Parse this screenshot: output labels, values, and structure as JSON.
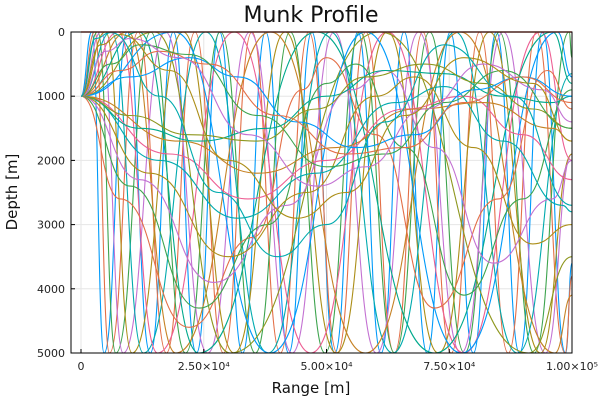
{
  "chart_data": {
    "type": "line",
    "title": "Munk Profile",
    "xlabel": "Range [m]",
    "ylabel": "Depth [m]",
    "xlim": [
      0,
      100000
    ],
    "ylim": [
      0,
      5000
    ],
    "y_inverted": true,
    "grid": true,
    "legend": "none",
    "x_ticks": [
      {
        "value": 0,
        "label": "0"
      },
      {
        "value": 25000,
        "label": "2.50×10⁴"
      },
      {
        "value": 50000,
        "label": "5.00×10⁴"
      },
      {
        "value": 75000,
        "label": "7.50×10⁴"
      },
      {
        "value": 100000,
        "label": "1.00×10⁵"
      }
    ],
    "y_ticks": [
      {
        "value": 0,
        "label": "0"
      },
      {
        "value": 1000,
        "label": "1000"
      },
      {
        "value": 2000,
        "label": "2000"
      },
      {
        "value": 3000,
        "label": "3000"
      },
      {
        "value": 4000,
        "label": "4000"
      },
      {
        "value": 5000,
        "label": "5000"
      }
    ],
    "source": {
      "x": 0,
      "depth": 1000
    },
    "surface_line": {
      "y": 0,
      "color": "#e26d5c"
    },
    "palette": [
      "#009AFA",
      "#E36F47",
      "#3EA44E",
      "#C371D2",
      "#AC8E18",
      "#00AAAE",
      "#ED5E93",
      "#C68225",
      "#00A98D",
      "#8E971E"
    ],
    "series": [
      {
        "points": [
          [
            0,
            1000
          ],
          [
            2200,
            0
          ],
          [
            4700,
            5000
          ],
          [
            9400,
            0
          ],
          [
            14100,
            5000
          ],
          [
            18800,
            0
          ],
          [
            23500,
            5000
          ],
          [
            28200,
            0
          ],
          [
            32900,
            5000
          ],
          [
            37600,
            0
          ],
          [
            42300,
            5000
          ],
          [
            47000,
            0
          ],
          [
            51700,
            5000
          ],
          [
            56400,
            0
          ],
          [
            61100,
            5000
          ],
          [
            65800,
            0
          ],
          [
            70500,
            5000
          ],
          [
            75200,
            0
          ],
          [
            79900,
            5000
          ],
          [
            84600,
            0
          ],
          [
            89300,
            5000
          ],
          [
            94000,
            0
          ],
          [
            98700,
            5000
          ],
          [
            100000,
            3600
          ]
        ]
      },
      {
        "points": [
          [
            0,
            1000
          ],
          [
            2800,
            0
          ],
          [
            5800,
            5000
          ],
          [
            11600,
            0
          ],
          [
            17400,
            5000
          ],
          [
            23200,
            0
          ],
          [
            29000,
            5000
          ],
          [
            34800,
            0
          ],
          [
            40600,
            5000
          ],
          [
            46400,
            0
          ],
          [
            52200,
            5000
          ],
          [
            58000,
            0
          ],
          [
            63800,
            5000
          ],
          [
            69600,
            0
          ],
          [
            75400,
            5000
          ],
          [
            81200,
            0
          ],
          [
            87000,
            5000
          ],
          [
            92800,
            0
          ],
          [
            98600,
            5000
          ],
          [
            100000,
            3800
          ]
        ]
      },
      {
        "points": [
          [
            0,
            1000
          ],
          [
            3400,
            0
          ],
          [
            7100,
            5000
          ],
          [
            14200,
            0
          ],
          [
            21300,
            5000
          ],
          [
            28400,
            0
          ],
          [
            35500,
            5000
          ],
          [
            42600,
            0
          ],
          [
            49700,
            5000
          ],
          [
            56800,
            0
          ],
          [
            63900,
            5000
          ],
          [
            71000,
            0
          ],
          [
            78100,
            5000
          ],
          [
            85200,
            0
          ],
          [
            92300,
            5000
          ],
          [
            99400,
            0
          ],
          [
            100000,
            400
          ]
        ]
      },
      {
        "points": [
          [
            0,
            1000
          ],
          [
            4100,
            0
          ],
          [
            8600,
            5000
          ],
          [
            17200,
            0
          ],
          [
            25800,
            5000
          ],
          [
            34400,
            0
          ],
          [
            43000,
            5000
          ],
          [
            51600,
            0
          ],
          [
            60200,
            5000
          ],
          [
            68800,
            0
          ],
          [
            77400,
            5000
          ],
          [
            86000,
            0
          ],
          [
            94600,
            5000
          ],
          [
            100000,
            1900
          ]
        ]
      },
      {
        "points": [
          [
            0,
            1000
          ],
          [
            5000,
            0
          ],
          [
            10400,
            5000
          ],
          [
            20800,
            0
          ],
          [
            31200,
            5000
          ],
          [
            41600,
            0
          ],
          [
            52000,
            5000
          ],
          [
            62400,
            0
          ],
          [
            72800,
            5000
          ],
          [
            83200,
            0
          ],
          [
            93600,
            5000
          ],
          [
            100000,
            1900
          ]
        ]
      },
      {
        "points": [
          [
            0,
            1000
          ],
          [
            6200,
            0
          ],
          [
            12700,
            5000
          ],
          [
            25400,
            0
          ],
          [
            38100,
            5000
          ],
          [
            50800,
            0
          ],
          [
            63500,
            5000
          ],
          [
            76200,
            0
          ],
          [
            88900,
            5000
          ],
          [
            100000,
            650
          ]
        ]
      },
      {
        "points": [
          [
            0,
            1000
          ],
          [
            7600,
            0
          ],
          [
            15600,
            5000
          ],
          [
            31200,
            0
          ],
          [
            46800,
            5000
          ],
          [
            62400,
            0
          ],
          [
            78000,
            5000
          ],
          [
            93600,
            0
          ],
          [
            100000,
            2000
          ]
        ]
      },
      {
        "points": [
          [
            0,
            1000
          ],
          [
            9500,
            0
          ],
          [
            19300,
            5000
          ],
          [
            38600,
            0
          ],
          [
            57900,
            5000
          ],
          [
            77200,
            0
          ],
          [
            96500,
            5000
          ],
          [
            100000,
            4100
          ]
        ]
      },
      {
        "points": [
          [
            0,
            1000
          ],
          [
            11800,
            0
          ],
          [
            24000,
            5000
          ],
          [
            48000,
            0
          ],
          [
            72000,
            5000
          ],
          [
            96000,
            0
          ],
          [
            100000,
            800
          ]
        ]
      },
      {
        "points": [
          [
            0,
            1000
          ],
          [
            15000,
            0
          ],
          [
            30400,
            5000
          ],
          [
            60800,
            0
          ],
          [
            91200,
            5000
          ],
          [
            100000,
            3500
          ]
        ]
      },
      {
        "points": [
          [
            0,
            1000
          ],
          [
            19000,
            0
          ],
          [
            38500,
            5000
          ],
          [
            58000,
            0
          ],
          [
            77500,
            5000
          ],
          [
            97000,
            0
          ],
          [
            100000,
            700
          ]
        ]
      },
      {
        "points": [
          [
            0,
            1000
          ],
          [
            8000,
            2600
          ],
          [
            22000,
            4600
          ],
          [
            35000,
            3200
          ],
          [
            45000,
            900
          ],
          [
            50000,
            400
          ],
          [
            60000,
            1600
          ],
          [
            72000,
            4300
          ],
          [
            85000,
            2600
          ],
          [
            95000,
            600
          ],
          [
            100000,
            1200
          ]
        ]
      },
      {
        "points": [
          [
            0,
            1000
          ],
          [
            10000,
            2400
          ],
          [
            24000,
            4300
          ],
          [
            38000,
            3000
          ],
          [
            50000,
            800
          ],
          [
            56000,
            500
          ],
          [
            66000,
            1800
          ],
          [
            78000,
            4100
          ],
          [
            90000,
            2600
          ],
          [
            100000,
            900
          ]
        ]
      },
      {
        "points": [
          [
            0,
            1000
          ],
          [
            12000,
            2300
          ],
          [
            27000,
            3900
          ],
          [
            42000,
            2700
          ],
          [
            55000,
            900
          ],
          [
            62000,
            600
          ],
          [
            72000,
            1800
          ],
          [
            84000,
            3600
          ],
          [
            96000,
            2600
          ],
          [
            100000,
            2000
          ]
        ]
      },
      {
        "points": [
          [
            0,
            1000
          ],
          [
            14000,
            2200
          ],
          [
            30000,
            3500
          ],
          [
            46000,
            2500
          ],
          [
            60000,
            1000
          ],
          [
            68000,
            700
          ],
          [
            80000,
            1800
          ],
          [
            92000,
            3300
          ],
          [
            100000,
            3000
          ]
        ]
      },
      {
        "points": [
          [
            0,
            1000
          ],
          [
            16000,
            2000
          ],
          [
            32000,
            2900
          ],
          [
            48000,
            2200
          ],
          [
            64000,
            1100
          ],
          [
            74000,
            850
          ],
          [
            86000,
            1700
          ],
          [
            98000,
            2700
          ],
          [
            100000,
            2800
          ]
        ]
      },
      {
        "points": [
          [
            0,
            1000
          ],
          [
            18000,
            1900
          ],
          [
            34000,
            2600
          ],
          [
            50000,
            2000
          ],
          [
            66000,
            1200
          ],
          [
            78000,
            1000
          ],
          [
            90000,
            1600
          ],
          [
            100000,
            2300
          ]
        ]
      },
      {
        "points": [
          [
            0,
            1000
          ],
          [
            20000,
            1700
          ],
          [
            36000,
            2200
          ],
          [
            52000,
            1800
          ],
          [
            68000,
            1200
          ],
          [
            82000,
            1100
          ],
          [
            96000,
            1500
          ],
          [
            100000,
            1700
          ]
        ]
      },
      {
        "points": [
          [
            0,
            1000
          ],
          [
            12000,
            1500
          ],
          [
            24000,
            1700
          ],
          [
            38000,
            1500
          ],
          [
            50000,
            1000
          ],
          [
            62000,
            600
          ],
          [
            74000,
            650
          ],
          [
            86000,
            1000
          ],
          [
            96000,
            1100
          ],
          [
            100000,
            1000
          ]
        ]
      },
      {
        "points": [
          [
            0,
            1000
          ],
          [
            10000,
            1300
          ],
          [
            22000,
            1600
          ],
          [
            36000,
            1700
          ],
          [
            48000,
            1200
          ],
          [
            58000,
            700
          ],
          [
            70000,
            500
          ],
          [
            82000,
            800
          ],
          [
            92000,
            1200
          ],
          [
            100000,
            1500
          ]
        ]
      },
      {
        "points": [
          [
            0,
            1000
          ],
          [
            10000,
            700
          ],
          [
            22000,
            400
          ],
          [
            32000,
            700
          ],
          [
            44000,
            1400
          ],
          [
            56000,
            1800
          ],
          [
            68000,
            1600
          ],
          [
            80000,
            900
          ],
          [
            90000,
            700
          ],
          [
            100000,
            1000
          ]
        ]
      },
      {
        "points": [
          [
            0,
            1000
          ],
          [
            8000,
            600
          ],
          [
            16000,
            300
          ],
          [
            26000,
            500
          ],
          [
            40000,
            1300
          ],
          [
            54000,
            1900
          ],
          [
            66000,
            1800
          ],
          [
            78000,
            1100
          ],
          [
            90000,
            700
          ],
          [
            100000,
            1100
          ]
        ]
      },
      {
        "points": [
          [
            0,
            1000
          ],
          [
            6000,
            500
          ],
          [
            12000,
            200
          ],
          [
            22000,
            350
          ],
          [
            36000,
            1300
          ],
          [
            50000,
            2100
          ],
          [
            62000,
            1900
          ],
          [
            74000,
            1100
          ],
          [
            86000,
            600
          ],
          [
            100000,
            1500
          ]
        ]
      },
      {
        "points": [
          [
            0,
            1000
          ],
          [
            5000,
            300
          ],
          [
            10000,
            100
          ],
          [
            20000,
            400
          ],
          [
            34000,
            1600
          ],
          [
            48000,
            2400
          ],
          [
            58000,
            2100
          ],
          [
            70000,
            1200
          ],
          [
            82000,
            500
          ],
          [
            94000,
            900
          ],
          [
            100000,
            1400
          ]
        ]
      },
      {
        "points": [
          [
            0,
            1000
          ],
          [
            4000,
            200
          ],
          [
            8000,
            40
          ],
          [
            18000,
            600
          ],
          [
            30000,
            2000
          ],
          [
            44000,
            2900
          ],
          [
            54000,
            2500
          ],
          [
            66000,
            1300
          ],
          [
            78000,
            400
          ],
          [
            92000,
            800
          ],
          [
            100000,
            1700
          ]
        ]
      },
      {
        "points": [
          [
            0,
            1000
          ],
          [
            3000,
            100
          ],
          [
            6000,
            10
          ],
          [
            16000,
            1000
          ],
          [
            28000,
            2500
          ],
          [
            40000,
            3500
          ],
          [
            50000,
            3000
          ],
          [
            62000,
            1400
          ],
          [
            74000,
            200
          ],
          [
            88000,
            1000
          ],
          [
            100000,
            2700
          ]
        ]
      }
    ]
  }
}
